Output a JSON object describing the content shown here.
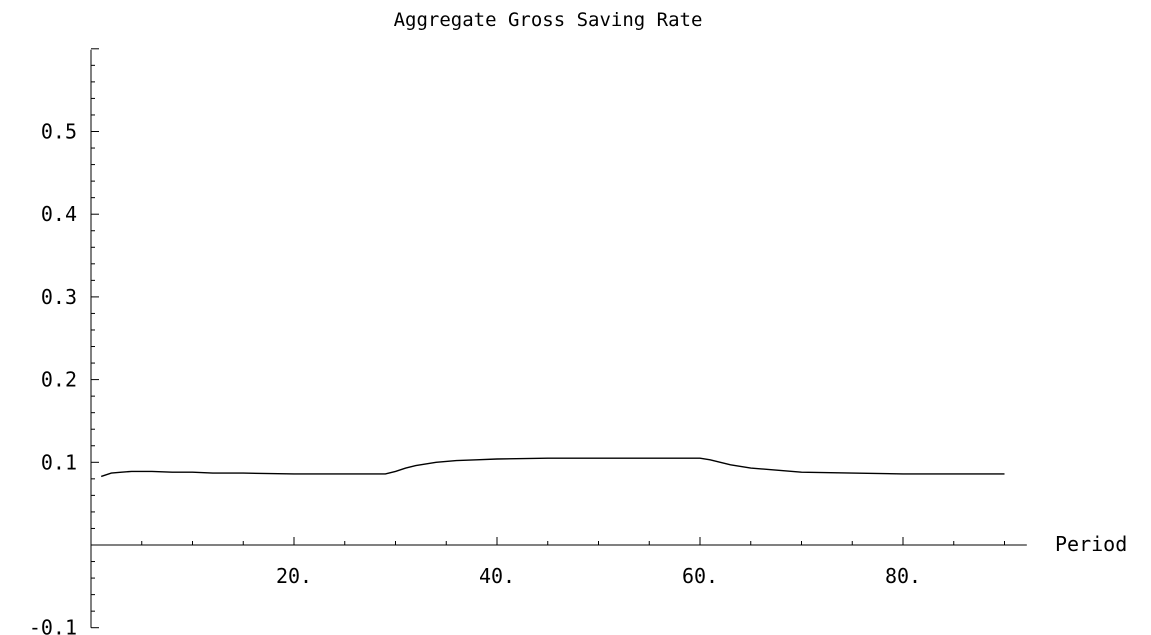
{
  "chart_data": {
    "type": "line",
    "title": "Aggregate Gross Saving Rate",
    "xlabel": "Period",
    "ylabel": "",
    "xlim": [
      0,
      90
    ],
    "ylim": [
      -0.1,
      0.6
    ],
    "grid": false,
    "x_ticks": [
      20,
      40,
      60,
      80
    ],
    "x_tick_labels": [
      "20.",
      "40.",
      "60.",
      "80."
    ],
    "y_ticks": [
      -0.1,
      0.1,
      0.2,
      0.3,
      0.4,
      0.5
    ],
    "y_tick_labels": [
      "-0.1",
      "0.1",
      "0.2",
      "0.3",
      "0.4",
      "0.5"
    ],
    "series": [
      {
        "x": [
          1,
          2,
          3,
          4,
          5,
          6,
          8,
          10,
          12,
          15,
          20,
          25,
          29,
          30,
          31,
          32,
          34,
          36,
          38,
          40,
          45,
          50,
          55,
          58,
          60,
          61,
          62,
          63,
          65,
          67,
          70,
          75,
          80,
          85,
          90
        ],
        "y": [
          0.083,
          0.087,
          0.088,
          0.089,
          0.089,
          0.089,
          0.088,
          0.088,
          0.087,
          0.087,
          0.086,
          0.086,
          0.086,
          0.089,
          0.093,
          0.096,
          0.1,
          0.102,
          0.103,
          0.104,
          0.105,
          0.105,
          0.105,
          0.105,
          0.105,
          0.103,
          0.1,
          0.097,
          0.093,
          0.091,
          0.088,
          0.087,
          0.086,
          0.086,
          0.086
        ]
      }
    ]
  }
}
